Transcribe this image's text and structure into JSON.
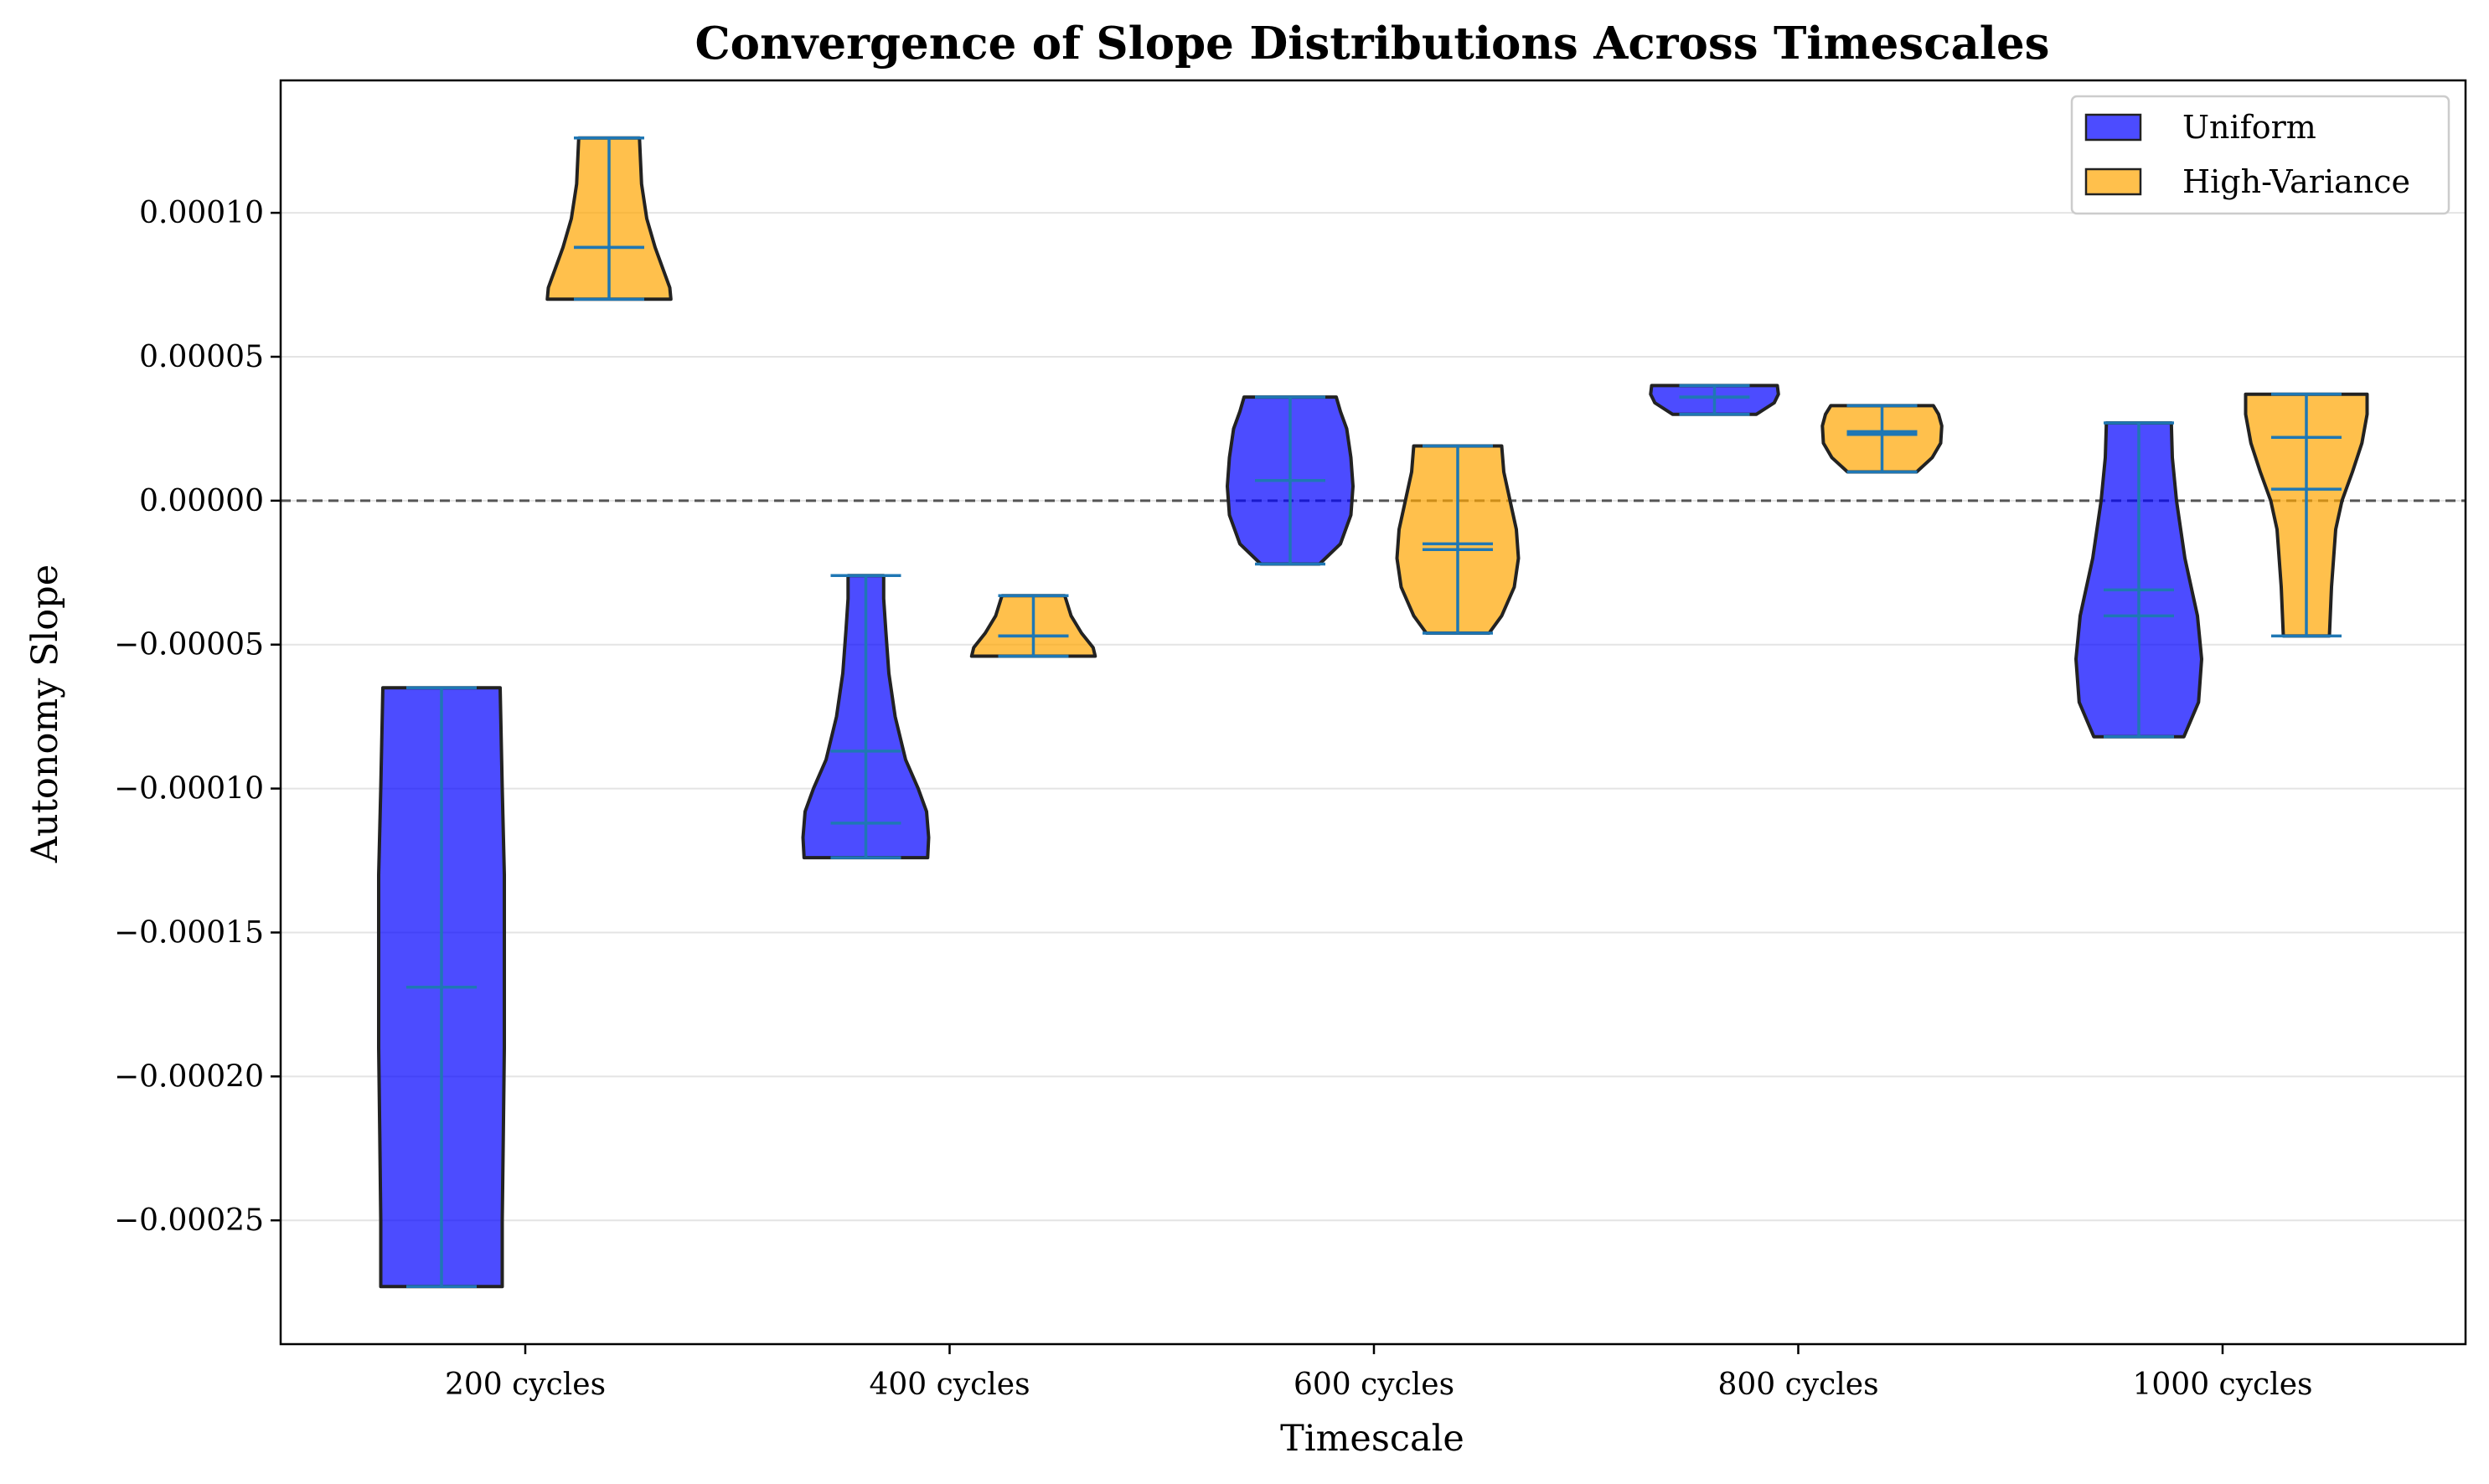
{
  "chart_data": {
    "type": "violin",
    "title": "Convergence of Slope Distributions Across Timescales",
    "xlabel": "Timescale",
    "ylabel": "Autonomy Slope",
    "categories": [
      "200 cycles",
      "400 cycles",
      "600 cycles",
      "800 cycles",
      "1000 cycles"
    ],
    "ylim": [
      -0.000293,
      0.000146
    ],
    "yticks": [
      -0.00025,
      -0.0002,
      -0.00015,
      -0.0001,
      -5e-05,
      0.0,
      5e-05,
      0.0001
    ],
    "ytick_labels": [
      "−0.00025",
      "−0.00020",
      "−0.00015",
      "−0.00010",
      "−0.00005",
      "0.00000",
      "0.00005",
      "0.00010"
    ],
    "reference_line": 0.0,
    "grid": "y",
    "legend_position": "top-right",
    "series": [
      {
        "name": "Uniform",
        "color": "#0000ff",
        "violins": [
          {
            "min": -0.000273,
            "max": -6.5e-05,
            "mean": -0.000169,
            "median": -0.000169,
            "profile": [
              [
                -0.000273,
                0.58
              ],
              [
                -0.00025,
                0.58
              ],
              [
                -0.00022,
                0.59
              ],
              [
                -0.00019,
                0.6
              ],
              [
                -0.00016,
                0.6
              ],
              [
                -0.00013,
                0.6
              ],
              [
                -0.0001,
                0.58
              ],
              [
                -6.5e-05,
                0.56
              ]
            ]
          },
          {
            "min": -0.000124,
            "max": -2.6e-05,
            "mean": -8.7e-05,
            "median": -0.000112,
            "profile": [
              [
                -0.000124,
                0.59
              ],
              [
                -0.000117,
                0.6
              ],
              [
                -0.000108,
                0.58
              ],
              [
                -0.0001,
                0.5
              ],
              [
                -9e-05,
                0.38
              ],
              [
                -7.5e-05,
                0.28
              ],
              [
                -6e-05,
                0.22
              ],
              [
                -4.5e-05,
                0.19
              ],
              [
                -3.4e-05,
                0.17
              ],
              [
                -2.6e-05,
                0.17
              ]
            ]
          },
          {
            "min": -2.2e-05,
            "max": 3.6e-05,
            "mean": 7e-06,
            "median": 7e-06,
            "profile": [
              [
                -2.2e-05,
                0.28
              ],
              [
                -1.5e-05,
                0.48
              ],
              [
                -5e-06,
                0.58
              ],
              [
                5e-06,
                0.6
              ],
              [
                1.5e-05,
                0.58
              ],
              [
                2.5e-05,
                0.54
              ],
              [
                3.1e-05,
                0.48
              ],
              [
                3.6e-05,
                0.44
              ]
            ]
          },
          {
            "min": 3e-05,
            "max": 4e-05,
            "mean": 3.6e-05,
            "median": 3.6e-05,
            "profile": [
              [
                3e-05,
                0.4
              ],
              [
                3.4e-05,
                0.57
              ],
              [
                3.7e-05,
                0.61
              ],
              [
                4e-05,
                0.6
              ]
            ]
          },
          {
            "min": -8.2e-05,
            "max": 2.7e-05,
            "mean": -3.1e-05,
            "median": -4e-05,
            "profile": [
              [
                -8.2e-05,
                0.43
              ],
              [
                -7e-05,
                0.57
              ],
              [
                -5.5e-05,
                0.6
              ],
              [
                -4e-05,
                0.56
              ],
              [
                -2e-05,
                0.44
              ],
              [
                0.0,
                0.36
              ],
              [
                1.5e-05,
                0.32
              ],
              [
                2.7e-05,
                0.31
              ]
            ]
          }
        ]
      },
      {
        "name": "High-Variance",
        "color": "#ffa500",
        "violins": [
          {
            "min": 7e-05,
            "max": 0.000126,
            "mean": 8.8e-05,
            "median": 8.8e-05,
            "profile": [
              [
                7e-05,
                0.59
              ],
              [
                7.4e-05,
                0.58
              ],
              [
                8e-05,
                0.52
              ],
              [
                8.8e-05,
                0.44
              ],
              [
                9.8e-05,
                0.36
              ],
              [
                0.00011,
                0.31
              ],
              [
                0.000126,
                0.29
              ]
            ]
          },
          {
            "min": -5.4e-05,
            "max": -3.3e-05,
            "mean": -4.7e-05,
            "median": -4.7e-05,
            "profile": [
              [
                -5.4e-05,
                0.59
              ],
              [
                -5.1e-05,
                0.57
              ],
              [
                -4.6e-05,
                0.46
              ],
              [
                -4e-05,
                0.36
              ],
              [
                -3.3e-05,
                0.3
              ]
            ]
          },
          {
            "min": -4.6e-05,
            "max": 1.9e-05,
            "mean": -1.5e-05,
            "median": -1.7e-05,
            "profile": [
              [
                -4.6e-05,
                0.3
              ],
              [
                -4e-05,
                0.42
              ],
              [
                -3e-05,
                0.54
              ],
              [
                -2e-05,
                0.58
              ],
              [
                -1e-05,
                0.56
              ],
              [
                0.0,
                0.5
              ],
              [
                1e-05,
                0.44
              ],
              [
                1.9e-05,
                0.42
              ]
            ]
          },
          {
            "min": 1e-05,
            "max": 3.3e-05,
            "mean": 2.3e-05,
            "median": 2.4e-05,
            "profile": [
              [
                1e-05,
                0.33
              ],
              [
                1.5e-05,
                0.48
              ],
              [
                2e-05,
                0.56
              ],
              [
                2.6e-05,
                0.57
              ],
              [
                3e-05,
                0.54
              ],
              [
                3.3e-05,
                0.49
              ]
            ]
          },
          {
            "min": -4.7e-05,
            "max": 3.7e-05,
            "mean": 4e-06,
            "median": 2.2e-05,
            "profile": [
              [
                -4.7e-05,
                0.22
              ],
              [
                -3e-05,
                0.24
              ],
              [
                -1e-05,
                0.28
              ],
              [
                0.0,
                0.34
              ],
              [
                1e-05,
                0.44
              ],
              [
                2e-05,
                0.53
              ],
              [
                3e-05,
                0.58
              ],
              [
                3.7e-05,
                0.58
              ]
            ]
          }
        ]
      }
    ]
  }
}
